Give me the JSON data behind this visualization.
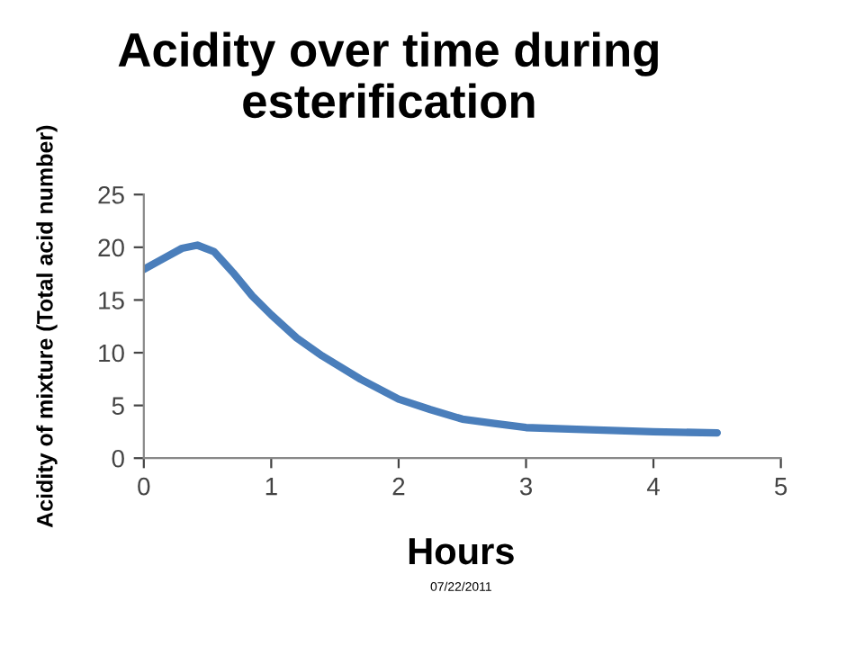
{
  "chart_data": {
    "type": "line",
    "title": "Acidity over time during esterification",
    "xlabel": "Hours",
    "ylabel": "Acidity of mixture (Total acid number)",
    "annotations": [
      "07/22/2011"
    ],
    "x": [
      0,
      0.15,
      0.3,
      0.42,
      0.55,
      0.7,
      0.85,
      1.0,
      1.2,
      1.4,
      1.7,
      2.0,
      2.25,
      2.5,
      2.75,
      3.0,
      3.5,
      4.0,
      4.5
    ],
    "series": [
      {
        "color": "#4a7ebb",
        "values": [
          17.9,
          18.9,
          19.9,
          20.2,
          19.6,
          17.6,
          15.4,
          13.6,
          11.4,
          9.7,
          7.5,
          5.6,
          4.6,
          3.7,
          3.3,
          2.9,
          2.7,
          2.5,
          2.4
        ]
      }
    ],
    "xlim": [
      0,
      5
    ],
    "xticks": [
      0,
      1,
      2,
      3,
      4,
      5
    ],
    "ylim": [
      0,
      25
    ],
    "yticks": [
      0,
      5,
      10,
      15,
      20,
      25
    ],
    "grid": false,
    "legend": false,
    "marker": "none",
    "line_style": "solid"
  }
}
